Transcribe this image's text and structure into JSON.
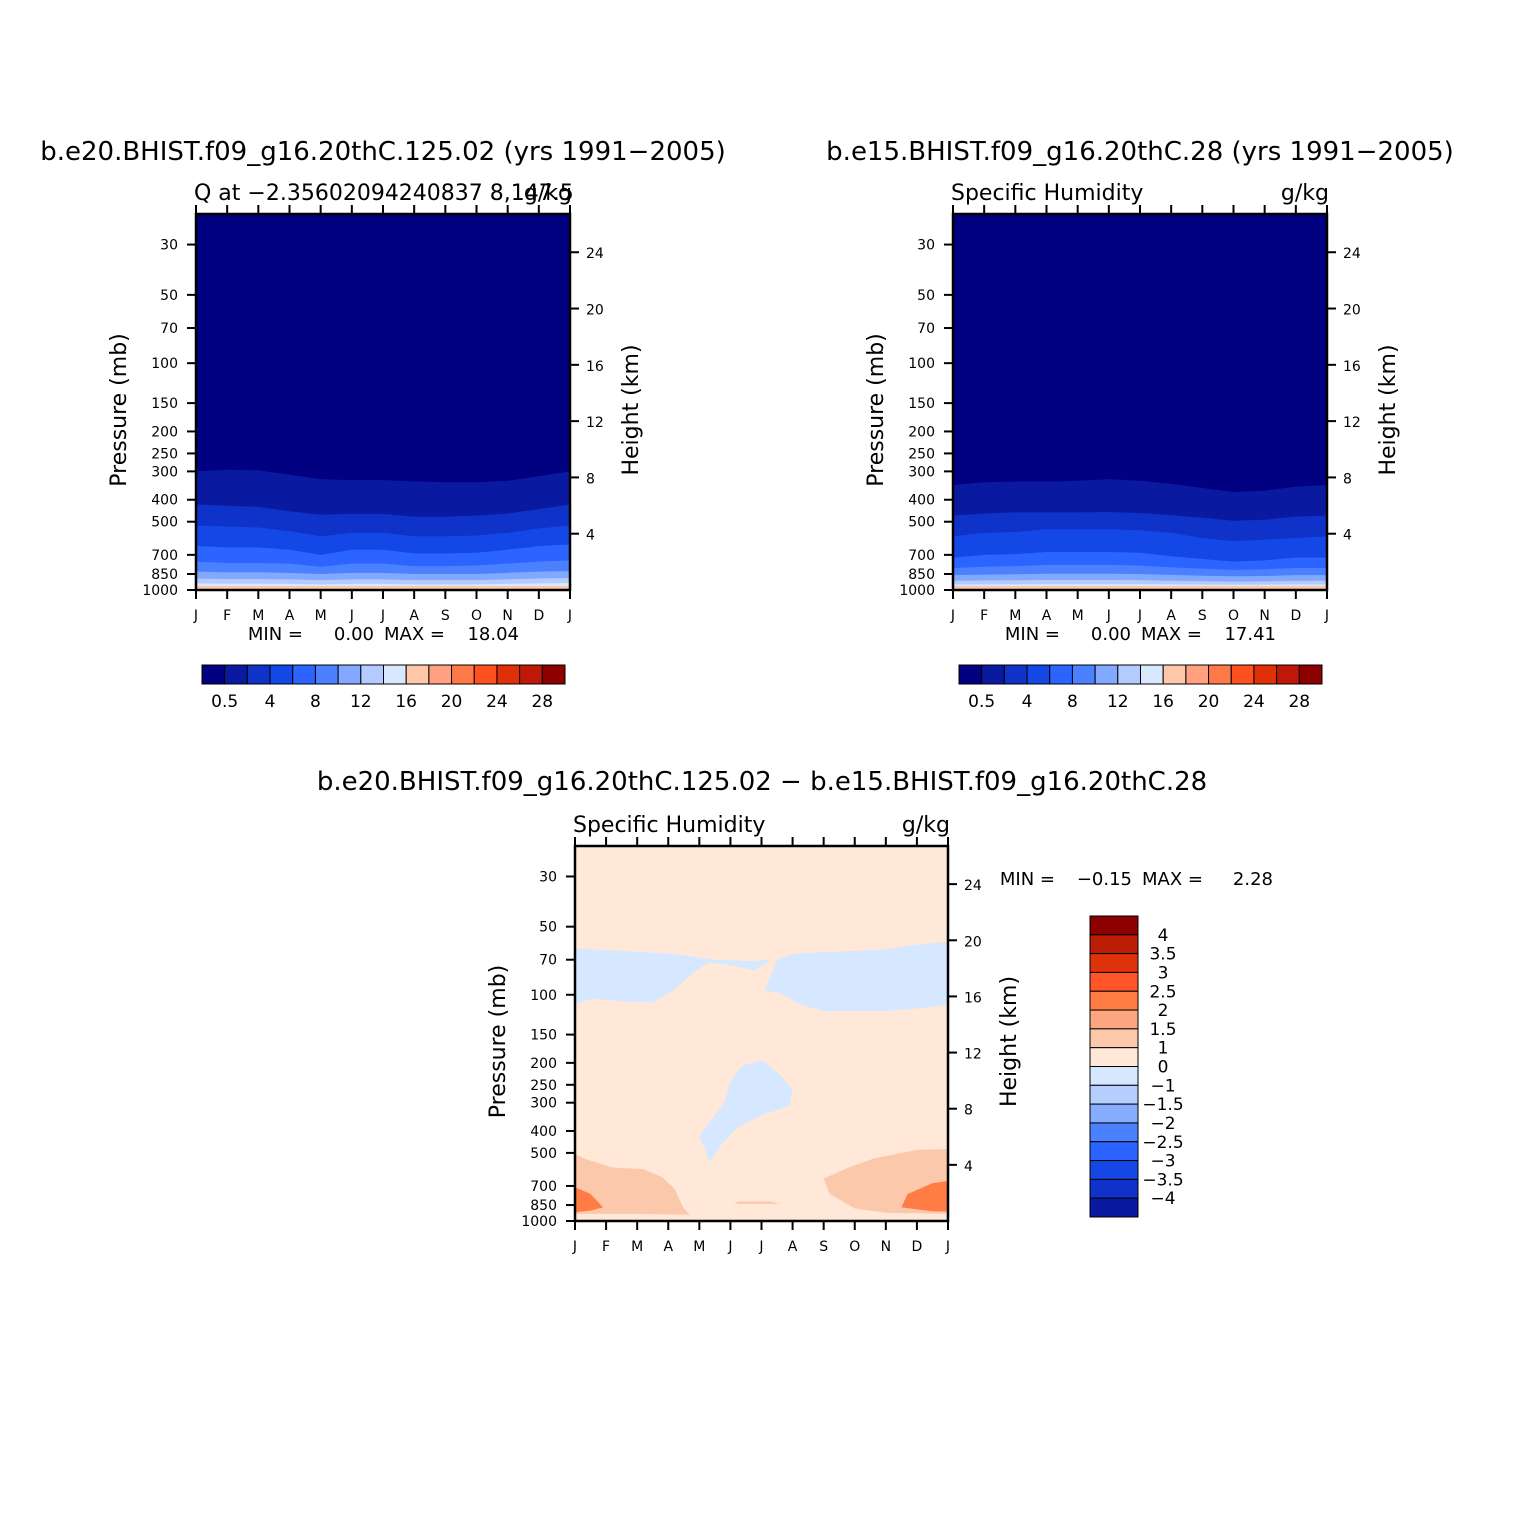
{
  "chart_data": [
    {
      "type": "contour",
      "title": "b.e20.BHIST.f09_g16.20thC.125.02 (yrs 1991−2005)",
      "left_subtitle": "Q at −2.35602094240837 8,147.5",
      "right_subtitle": "g/kg",
      "ylabel": "Pressure (mb)",
      "y2label": "Height (km)",
      "x_ticks": [
        "J",
        "F",
        "M",
        "A",
        "M",
        "J",
        "J",
        "A",
        "S",
        "O",
        "N",
        "D",
        "J"
      ],
      "y_ticks": [
        "30",
        "50",
        "70",
        "100",
        "150",
        "200",
        "250",
        "300",
        "400",
        "500",
        "700",
        "850",
        "1000"
      ],
      "y2_ticks": [
        "24",
        "20",
        "16",
        "12",
        "8",
        "4"
      ],
      "min_label": "MIN =",
      "min_value": "0.00",
      "max_label": "MAX =",
      "max_value": "18.04",
      "levels": [
        0.5,
        1,
        2,
        4,
        6,
        8,
        10,
        12,
        14,
        16,
        18,
        20,
        22,
        24,
        26,
        28
      ],
      "colorbar_labels": [
        "0.5",
        "4",
        "8",
        "12",
        "16",
        "20",
        "24",
        "28"
      ],
      "boundaries_pressure": [
        [
          300,
          295,
          297,
          310,
          325,
          328,
          328,
          332,
          335,
          335,
          330,
          315,
          300
        ],
        [
          420,
          425,
          430,
          450,
          465,
          462,
          462,
          475,
          475,
          470,
          460,
          440,
          420
        ],
        [
          520,
          525,
          530,
          550,
          580,
          560,
          560,
          580,
          580,
          575,
          560,
          535,
          520
        ],
        [
          640,
          650,
          650,
          665,
          700,
          665,
          665,
          690,
          690,
          685,
          665,
          640,
          630
        ],
        [
          750,
          760,
          760,
          765,
          790,
          765,
          765,
          785,
          785,
          780,
          765,
          750,
          740
        ],
        [
          830,
          835,
          835,
          840,
          850,
          840,
          840,
          850,
          850,
          850,
          840,
          830,
          825
        ],
        [
          890,
          895,
          895,
          898,
          905,
          898,
          898,
          905,
          905,
          905,
          898,
          890,
          885
        ],
        [
          935,
          938,
          938,
          940,
          945,
          940,
          940,
          945,
          945,
          945,
          940,
          935,
          932
        ],
        [
          965,
          966,
          966,
          968,
          970,
          968,
          968,
          970,
          970,
          970,
          968,
          965,
          964
        ]
      ]
    },
    {
      "type": "contour",
      "title": "b.e15.BHIST.f09_g16.20thC.28 (yrs 1991−2005)",
      "left_subtitle": "Specific Humidity",
      "right_subtitle": "g/kg",
      "ylabel": "Pressure (mb)",
      "y2label": "Height (km)",
      "x_ticks": [
        "J",
        "F",
        "M",
        "A",
        "M",
        "J",
        "J",
        "A",
        "S",
        "O",
        "N",
        "D",
        "J"
      ],
      "y_ticks": [
        "30",
        "50",
        "70",
        "100",
        "150",
        "200",
        "250",
        "300",
        "400",
        "500",
        "700",
        "850",
        "1000"
      ],
      "y2_ticks": [
        "24",
        "20",
        "16",
        "12",
        "8",
        "4"
      ],
      "min_label": "MIN =",
      "min_value": "0.00",
      "max_label": "MAX =",
      "max_value": "17.41",
      "levels": [
        0.5,
        1,
        2,
        4,
        6,
        8,
        10,
        12,
        14,
        16,
        18,
        20,
        22,
        24,
        26,
        28
      ],
      "colorbar_labels": [
        "0.5",
        "4",
        "8",
        "12",
        "16",
        "20",
        "24",
        "28"
      ],
      "boundaries_pressure": [
        [
          345,
          335,
          333,
          333,
          330,
          325,
          330,
          340,
          355,
          370,
          365,
          350,
          345
        ],
        [
          470,
          460,
          455,
          455,
          455,
          453,
          458,
          468,
          480,
          495,
          490,
          475,
          470
        ],
        [
          580,
          560,
          555,
          540,
          540,
          540,
          545,
          560,
          590,
          610,
          600,
          590,
          580
        ],
        [
          720,
          700,
          695,
          680,
          680,
          680,
          685,
          710,
          730,
          750,
          740,
          720,
          720
        ],
        [
          800,
          790,
          785,
          775,
          775,
          775,
          780,
          795,
          805,
          815,
          810,
          800,
          800
        ],
        [
          860,
          855,
          852,
          848,
          848,
          848,
          850,
          858,
          865,
          870,
          868,
          860,
          860
        ],
        [
          910,
          908,
          906,
          904,
          904,
          904,
          905,
          910,
          914,
          918,
          916,
          912,
          910
        ],
        [
          945,
          944,
          943,
          942,
          942,
          942,
          942,
          944,
          946,
          948,
          947,
          945,
          945
        ],
        [
          970,
          970,
          969,
          969,
          969,
          969,
          969,
          970,
          971,
          972,
          971,
          970,
          970
        ]
      ]
    },
    {
      "type": "contour",
      "title": "b.e20.BHIST.f09_g16.20thC.125.02 − b.e15.BHIST.f09_g16.20thC.28",
      "left_subtitle": "Specific Humidity",
      "right_subtitle": "g/kg",
      "ylabel": "Pressure (mb)",
      "y2label": "Height (km)",
      "x_ticks": [
        "J",
        "F",
        "M",
        "A",
        "M",
        "J",
        "J",
        "A",
        "S",
        "O",
        "N",
        "D",
        "J"
      ],
      "y_ticks": [
        "30",
        "50",
        "70",
        "100",
        "150",
        "200",
        "250",
        "300",
        "400",
        "500",
        "700",
        "850",
        "1000"
      ],
      "y2_ticks": [
        "24",
        "20",
        "16",
        "12",
        "8",
        "4"
      ],
      "min_label": "MIN =",
      "min_value": "−0.15",
      "max_label": "MAX =",
      "max_value": "2.28",
      "levels": [
        -4,
        -3.5,
        -3,
        -2.5,
        -2,
        -1.5,
        -1,
        0,
        1,
        1.5,
        2,
        2.5,
        3,
        3.5,
        4
      ],
      "colorbar_labels": [
        "4",
        "3.5",
        "3",
        "2.5",
        "2",
        "1.5",
        "1",
        "0",
        "−1",
        "−1.5",
        "−2",
        "−2.5",
        "−3",
        "−3.5",
        "−4"
      ],
      "regions": [
        {
          "range": "0 to 1",
          "description": "background"
        },
        {
          "range": "-1 to 0",
          "location": "upper band 60-110 mb"
        },
        {
          "range": "-1 to 0",
          "location": "mid tongue 150-500 mb, May-Aug"
        },
        {
          "range": "1 to 1.5",
          "location": "lower troposphere 500-1000 mb, Jan-Apr and Sep-Dec"
        },
        {
          "range": "1.5 to 2",
          "location": "near 800 mb, Jan and Nov-Dec"
        }
      ]
    }
  ],
  "colors": {
    "blue_red_18": [
      "#000080",
      "#0a1aa0",
      "#0f32c8",
      "#1448e6",
      "#2c64ff",
      "#4b80ff",
      "#82a8ff",
      "#b4cbff",
      "#d8e8ff",
      "#ffe6d0",
      "#ffc7aa",
      "#ffa080",
      "#ff7848",
      "#ff5020",
      "#e03008",
      "#c01808",
      "#8c0000"
    ],
    "diff_positive": "#ffe8d8",
    "diff_negative": "#d6e8ff",
    "diff_mid": "#fcc8ac",
    "diff_strong": "#ff7d45"
  }
}
